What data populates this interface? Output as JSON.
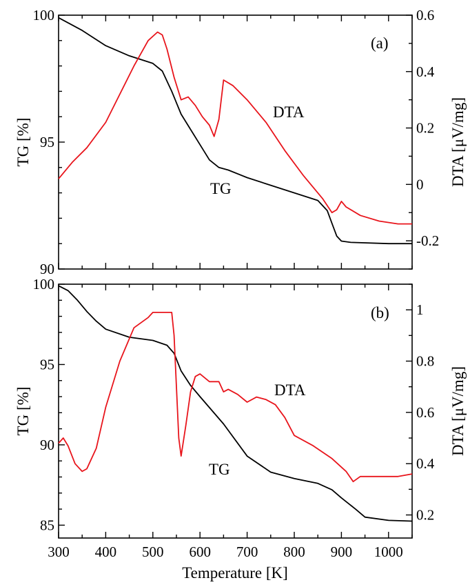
{
  "colors": {
    "tg": "#000000",
    "dta": "#e8141b"
  },
  "xaxis": {
    "label": "Temperature [K]",
    "range": [
      300,
      1050
    ],
    "ticks": [
      300,
      400,
      500,
      600,
      700,
      800,
      900,
      1000
    ],
    "tick_labels": [
      "300",
      "400",
      "500",
      "600",
      "700",
      "800",
      "900",
      "1000"
    ]
  },
  "chart_data": [
    {
      "type": "line",
      "panel_label": "(a)",
      "ylabel_left": "TG [%]",
      "ylabel_right": "DTA [μV/mg]",
      "ylim_left": [
        90,
        100
      ],
      "ylim_right": [
        -0.3,
        0.6
      ],
      "yticks_left": [
        90,
        95,
        100
      ],
      "yticks_left_labels": [
        "90",
        "95",
        "100"
      ],
      "yticks_right": [
        -0.2,
        0,
        0.2,
        0.4,
        0.6
      ],
      "yticks_right_labels": [
        "-0.2",
        "0",
        "0.2",
        "0.4",
        "0.6"
      ],
      "series": [
        {
          "name": "TG",
          "axis": "left",
          "x": [
            300,
            350,
            400,
            450,
            500,
            520,
            540,
            560,
            580,
            600,
            620,
            640,
            660,
            700,
            750,
            800,
            850,
            870,
            880,
            890,
            900,
            920,
            1000,
            1050
          ],
          "y": [
            99.9,
            99.4,
            98.8,
            98.4,
            98.1,
            97.8,
            97.0,
            96.1,
            95.5,
            94.9,
            94.3,
            94.0,
            93.9,
            93.6,
            93.3,
            93.0,
            92.7,
            92.3,
            91.8,
            91.3,
            91.1,
            91.05,
            91.0,
            91.0
          ]
        },
        {
          "name": "DTA",
          "axis": "right",
          "x": [
            300,
            330,
            360,
            400,
            430,
            460,
            490,
            510,
            520,
            530,
            545,
            560,
            575,
            590,
            605,
            620,
            630,
            640,
            650,
            670,
            700,
            740,
            780,
            820,
            860,
            880,
            890,
            900,
            910,
            940,
            980,
            1020,
            1050
          ],
          "y": [
            0.02,
            0.08,
            0.13,
            0.22,
            0.32,
            0.42,
            0.51,
            0.54,
            0.53,
            0.48,
            0.38,
            0.3,
            0.31,
            0.28,
            0.24,
            0.21,
            0.17,
            0.23,
            0.37,
            0.35,
            0.3,
            0.22,
            0.12,
            0.03,
            -0.05,
            -0.1,
            -0.09,
            -0.06,
            -0.08,
            -0.11,
            -0.13,
            -0.14,
            -0.14
          ]
        }
      ]
    },
    {
      "type": "line",
      "panel_label": "(b)",
      "ylabel_left": "TG [%]",
      "ylabel_right": "DTA [μV/mg]",
      "ylim_left": [
        84.2,
        100
      ],
      "ylim_right": [
        0.11,
        1.1
      ],
      "yticks_left": [
        85,
        90,
        95,
        100
      ],
      "yticks_left_labels": [
        "85",
        "90",
        "95",
        "100"
      ],
      "yticks_right": [
        0.2,
        0.4,
        0.6,
        0.8,
        1.0
      ],
      "yticks_right_labels": [
        "0.2",
        "0.4",
        "0.6",
        "0.8",
        "1"
      ],
      "series": [
        {
          "name": "TG",
          "axis": "left",
          "x": [
            300,
            320,
            340,
            360,
            380,
            400,
            450,
            500,
            530,
            545,
            560,
            580,
            600,
            650,
            700,
            750,
            800,
            850,
            880,
            900,
            930,
            950,
            1000,
            1050
          ],
          "y": [
            99.9,
            99.6,
            99.0,
            98.3,
            97.7,
            97.2,
            96.7,
            96.5,
            96.2,
            95.7,
            94.6,
            93.7,
            93.0,
            91.3,
            89.3,
            88.3,
            87.9,
            87.6,
            87.2,
            86.7,
            86.0,
            85.5,
            85.3,
            85.25
          ]
        },
        {
          "name": "DTA",
          "axis": "right",
          "x": [
            300,
            310,
            320,
            335,
            350,
            360,
            380,
            400,
            430,
            460,
            490,
            500,
            520,
            540,
            545,
            550,
            555,
            560,
            570,
            580,
            590,
            600,
            620,
            640,
            650,
            660,
            680,
            700,
            720,
            740,
            760,
            780,
            800,
            840,
            880,
            910,
            925,
            940,
            980,
            1020,
            1050
          ],
          "y": [
            0.48,
            0.5,
            0.47,
            0.4,
            0.37,
            0.38,
            0.46,
            0.62,
            0.8,
            0.93,
            0.97,
            0.99,
            0.99,
            0.99,
            0.9,
            0.7,
            0.5,
            0.43,
            0.55,
            0.68,
            0.74,
            0.75,
            0.72,
            0.72,
            0.68,
            0.69,
            0.67,
            0.64,
            0.66,
            0.65,
            0.63,
            0.58,
            0.51,
            0.47,
            0.42,
            0.37,
            0.33,
            0.35,
            0.35,
            0.35,
            0.36
          ]
        }
      ]
    }
  ]
}
